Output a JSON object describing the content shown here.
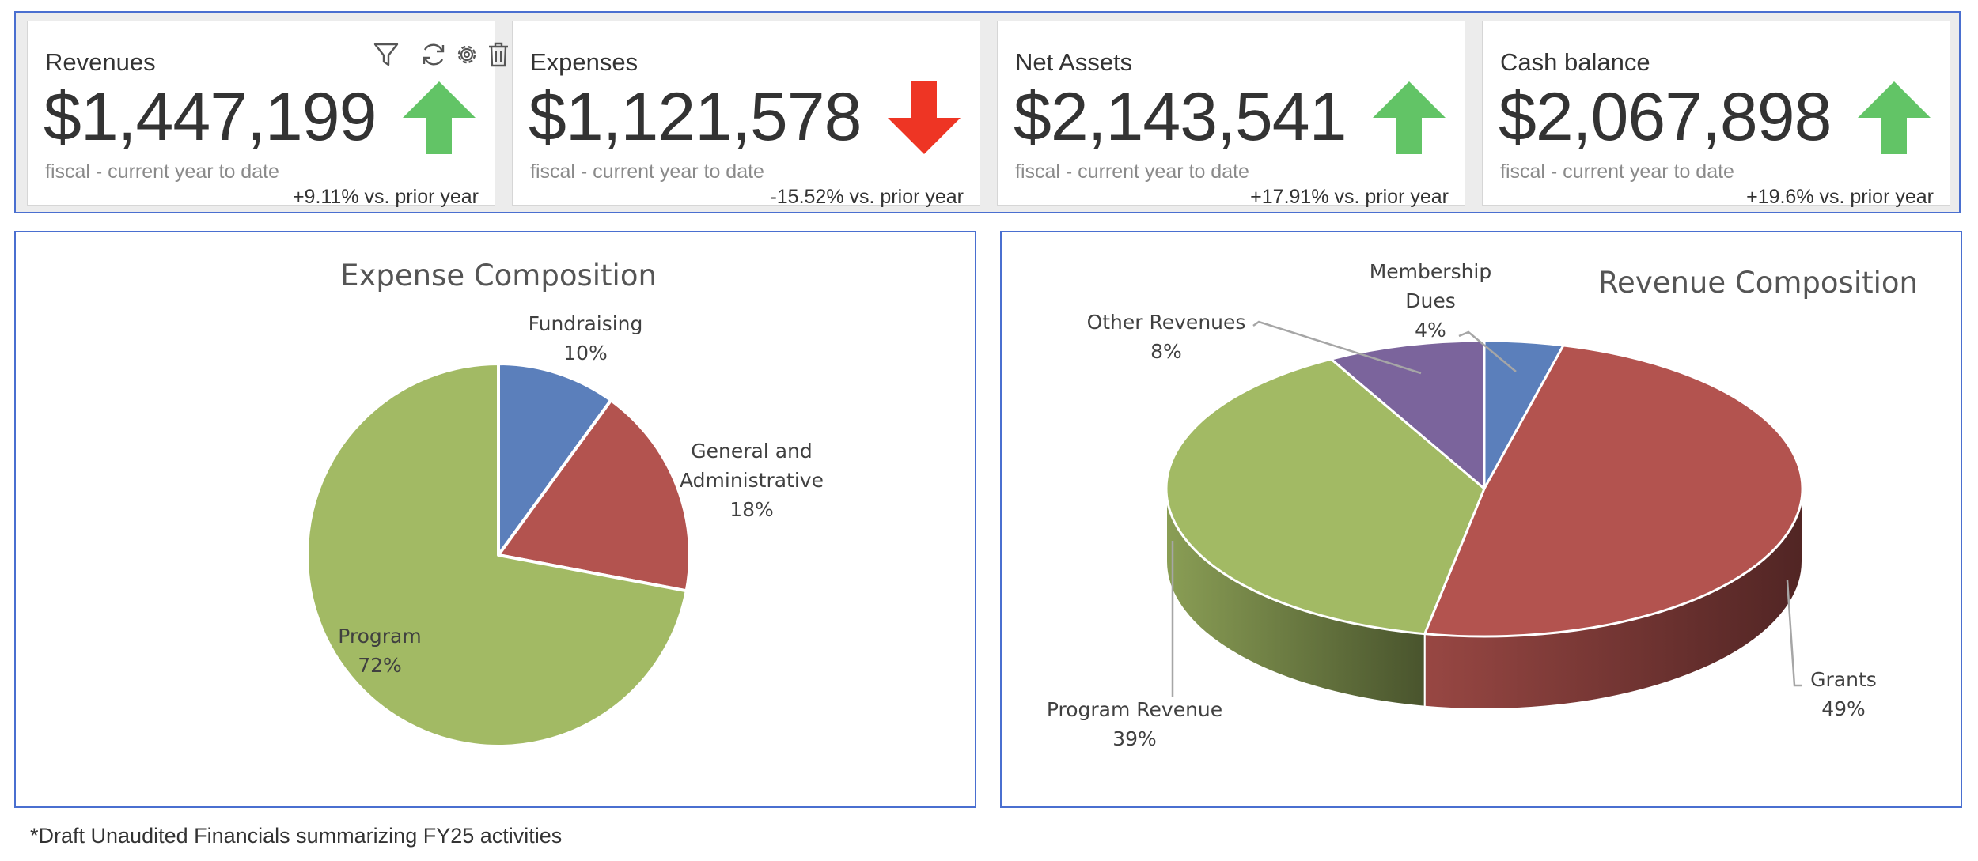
{
  "kpis": [
    {
      "title": "Revenues",
      "value": "$1,447,199",
      "subtitle": "fiscal - current year to date",
      "delta": "+9.11% vs. prior year",
      "trend": "up",
      "arrow_color": "#62c466"
    },
    {
      "title": "Expenses",
      "value": "$1,121,578",
      "subtitle": "fiscal - current year to date",
      "delta": "-15.52% vs. prior year",
      "trend": "down",
      "arrow_color": "#ee3524"
    },
    {
      "title": "Net Assets",
      "value": "$2,143,541",
      "subtitle": "fiscal - current year to date",
      "delta": "+17.91% vs. prior year",
      "trend": "up",
      "arrow_color": "#62c466"
    },
    {
      "title": "Cash balance",
      "value": "$2,067,898",
      "subtitle": "fiscal - current year to date",
      "delta": "+19.6% vs. prior year",
      "trend": "up",
      "arrow_color": "#62c466"
    }
  ],
  "card_tool_icons": [
    "filter-icon",
    "refresh-icon",
    "gear-icon",
    "trash-icon"
  ],
  "chart_data": [
    {
      "type": "pie",
      "title": "Expense Composition",
      "slices": [
        {
          "label": "Fundraising",
          "value": 10,
          "value_label": "10%",
          "color": "#5b7fbb"
        },
        {
          "label": "General and Administrative",
          "value": 18,
          "value_label": "18%",
          "color": "#b3534f"
        },
        {
          "label": "Program",
          "value": 72,
          "value_label": "72%",
          "color": "#a2ba64"
        }
      ]
    },
    {
      "type": "pie",
      "title": "Revenue Composition",
      "style": "3d",
      "slices": [
        {
          "label": "Membership Dues",
          "value": 4,
          "value_label": "4%",
          "color": "#5b7fbb"
        },
        {
          "label": "Grants",
          "value": 49,
          "value_label": "49%",
          "color": "#b3534f"
        },
        {
          "label": "Program Revenue",
          "value": 39,
          "value_label": "39%",
          "color": "#a2ba64"
        },
        {
          "label": "Other Revenues",
          "value": 8,
          "value_label": "8%",
          "color": "#7b649c"
        }
      ]
    }
  ],
  "footnote": "*Draft Unaudited Financials summarizing FY25 activities"
}
